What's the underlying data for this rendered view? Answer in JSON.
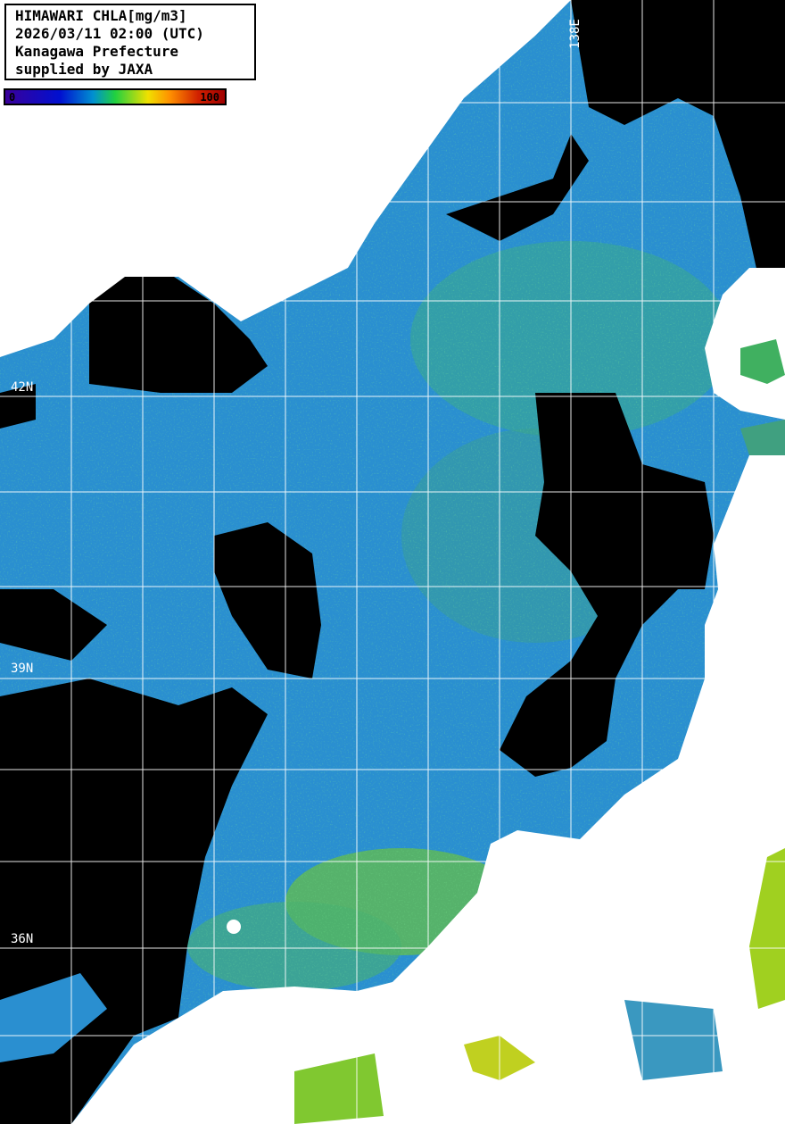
{
  "legend": {
    "line1": "HIMAWARI CHLA[mg/m3]",
    "line2": "2026/03/11 02:00 (UTC)",
    "line3": "Kanagawa Prefecture",
    "line4": "supplied by JAXA"
  },
  "colorbar": {
    "min": "0",
    "max": "100",
    "colors": [
      "#3a009a",
      "#0010d0",
      "#0090d0",
      "#20d040",
      "#f0e000",
      "#ff9000",
      "#d02000",
      "#a00000"
    ]
  },
  "grid_labels": {
    "lat_42": "42N",
    "lat_39": "39N",
    "lat_36": "36N",
    "lon_138": "138E"
  },
  "colors": {
    "ocean": "#2a8fd0",
    "land": "#ffffff",
    "no_data": "#000000",
    "grid": "#ffffff"
  }
}
